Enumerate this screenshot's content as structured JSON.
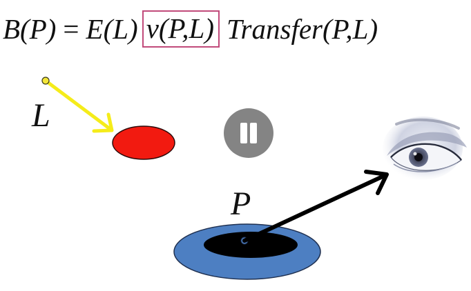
{
  "equation": {
    "lhs": "B(P)",
    "equals": "=",
    "emission": "E(L)",
    "visibility": "v(P,L)",
    "transfer": "Transfer(P,L)"
  },
  "labels": {
    "light": "L",
    "point": "P"
  },
  "colors": {
    "light_source": "#f3e63a",
    "light_ray": "#f5ec1a",
    "occluder": "#f21a10",
    "receiver_outer": "#4d7fc2",
    "receiver_shadow": "#000000",
    "receiver_point": "#4d7fc2",
    "view_ray": "#000000",
    "highlight_box": "#c14a7a"
  },
  "icons": {
    "pause": "pause-icon",
    "eye": "eye-icon"
  }
}
